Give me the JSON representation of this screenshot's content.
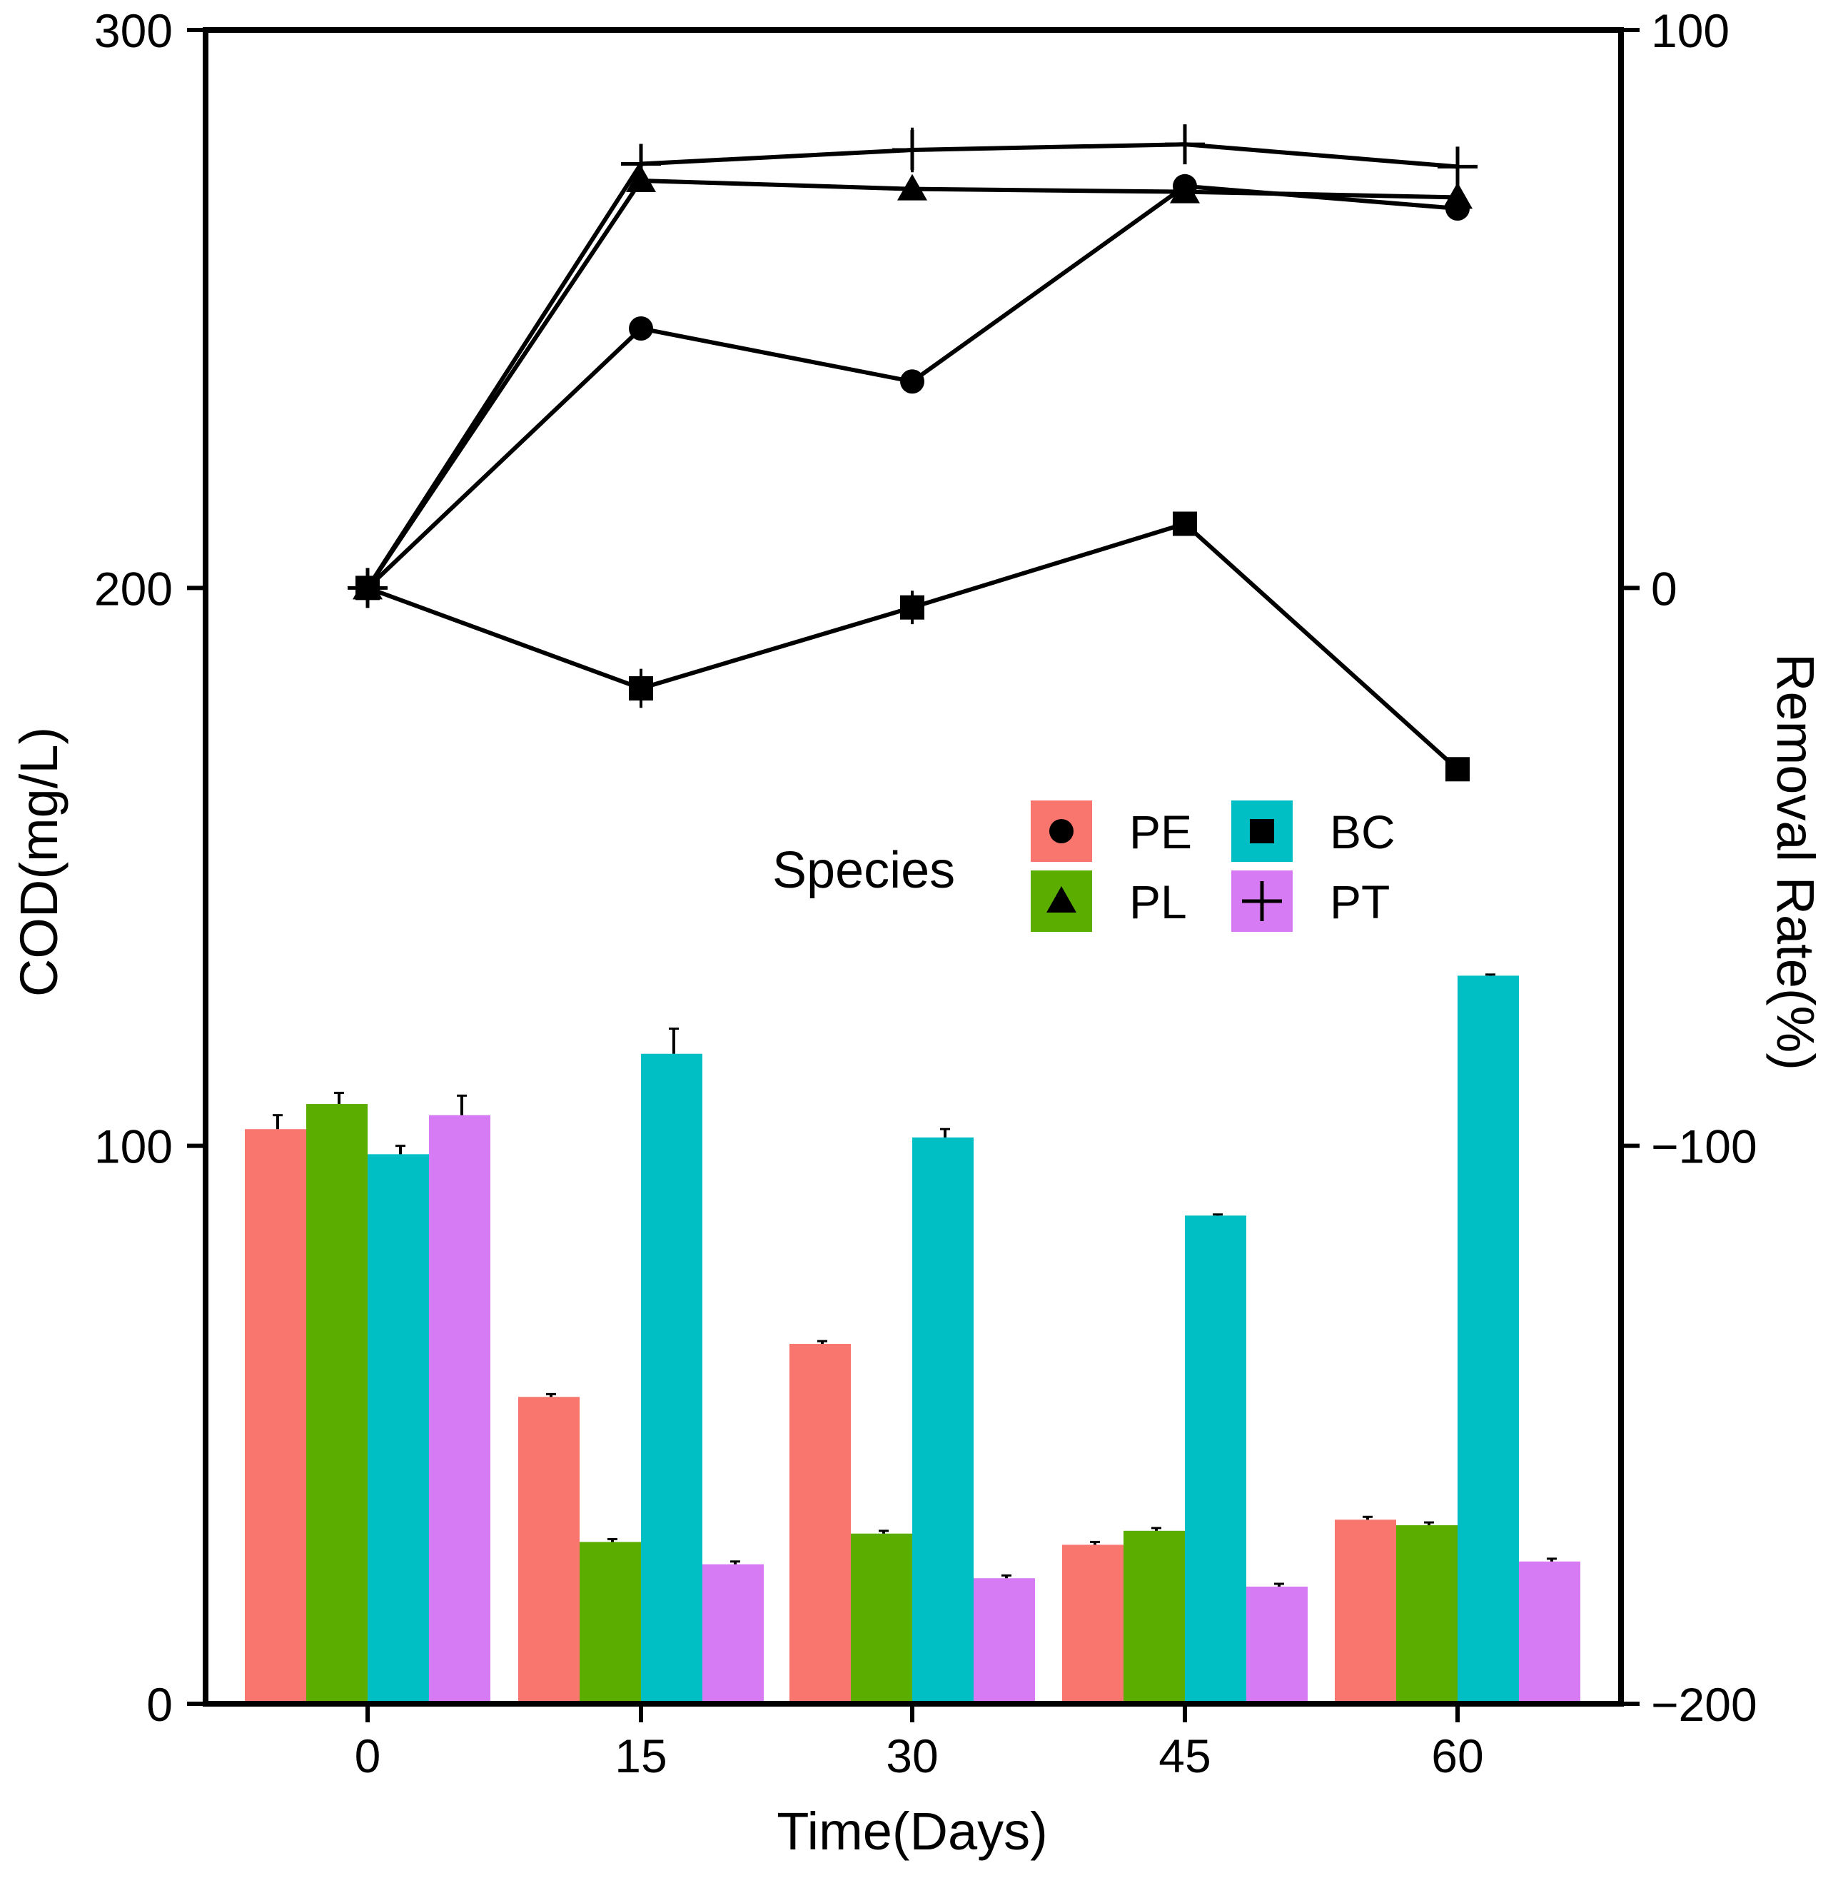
{
  "chart_data": {
    "type": "bar+line",
    "x": [
      0,
      15,
      30,
      45,
      60
    ],
    "xlabel": "Time(Days)",
    "ylabel": "COD(mg/L)",
    "ylabel_right": "Removal Rate(%)",
    "y_left": {
      "ylim": [
        0,
        300
      ],
      "ticks": [
        0,
        100,
        200,
        300
      ]
    },
    "y_right": {
      "ylim": [
        -200,
        100
      ],
      "ticks": [
        -200,
        -100,
        0,
        100
      ],
      "tick_labels": [
        "−200",
        "−100",
        "0",
        "100"
      ]
    },
    "legend": {
      "title": "Species",
      "placement": "center",
      "entries": [
        {
          "name": "PE",
          "marker": "circle",
          "color": "#F8766D"
        },
        {
          "name": "PL",
          "marker": "triangle",
          "color": "#5BAE00"
        },
        {
          "name": "BC",
          "marker": "square",
          "color": "#00BFC4"
        },
        {
          "name": "PT",
          "marker": "plus",
          "color": "#D77BF5"
        }
      ]
    },
    "bar_series": [
      {
        "name": "PE",
        "color": "#F8766D",
        "values": [
          103,
          55,
          64.5,
          28.5,
          33
        ],
        "errors": [
          2.5,
          0.5,
          0.5,
          0.5,
          0.5
        ]
      },
      {
        "name": "PL",
        "color": "#5BAE00",
        "values": [
          107.5,
          29,
          30.5,
          31,
          32
        ],
        "errors": [
          2,
          0.5,
          0.5,
          0.5,
          0.5
        ]
      },
      {
        "name": "BC",
        "color": "#00BFC4",
        "values": [
          98.5,
          116.5,
          101.5,
          87.5,
          130.5
        ],
        "errors": [
          1.5,
          4.5,
          1.5,
          0.2,
          0.2
        ]
      },
      {
        "name": "PT",
        "color": "#D77BF5",
        "values": [
          105.5,
          25,
          22.5,
          21,
          25.5
        ],
        "errors": [
          3.5,
          0.5,
          0.5,
          0.5,
          0.5
        ]
      }
    ],
    "line_series": [
      {
        "name": "PE",
        "marker": "circle",
        "values": [
          0,
          46.5,
          37,
          72,
          68
        ],
        "errors": [
          1,
          1.5,
          1.5,
          1.5,
          2
        ]
      },
      {
        "name": "PL",
        "marker": "triangle",
        "values": [
          0,
          73,
          71.5,
          71,
          70
        ],
        "errors": [
          1,
          1,
          1,
          1,
          1
        ]
      },
      {
        "name": "BC",
        "marker": "square",
        "values": [
          0,
          -18,
          -3.5,
          11.5,
          -32.5
        ],
        "errors": [
          1,
          3.5,
          3,
          1.5,
          1
        ]
      },
      {
        "name": "PT",
        "marker": "plus",
        "values": [
          0,
          76,
          78.5,
          79.5,
          75.5
        ],
        "errors": [
          2,
          2,
          4,
          3,
          2
        ]
      }
    ]
  }
}
